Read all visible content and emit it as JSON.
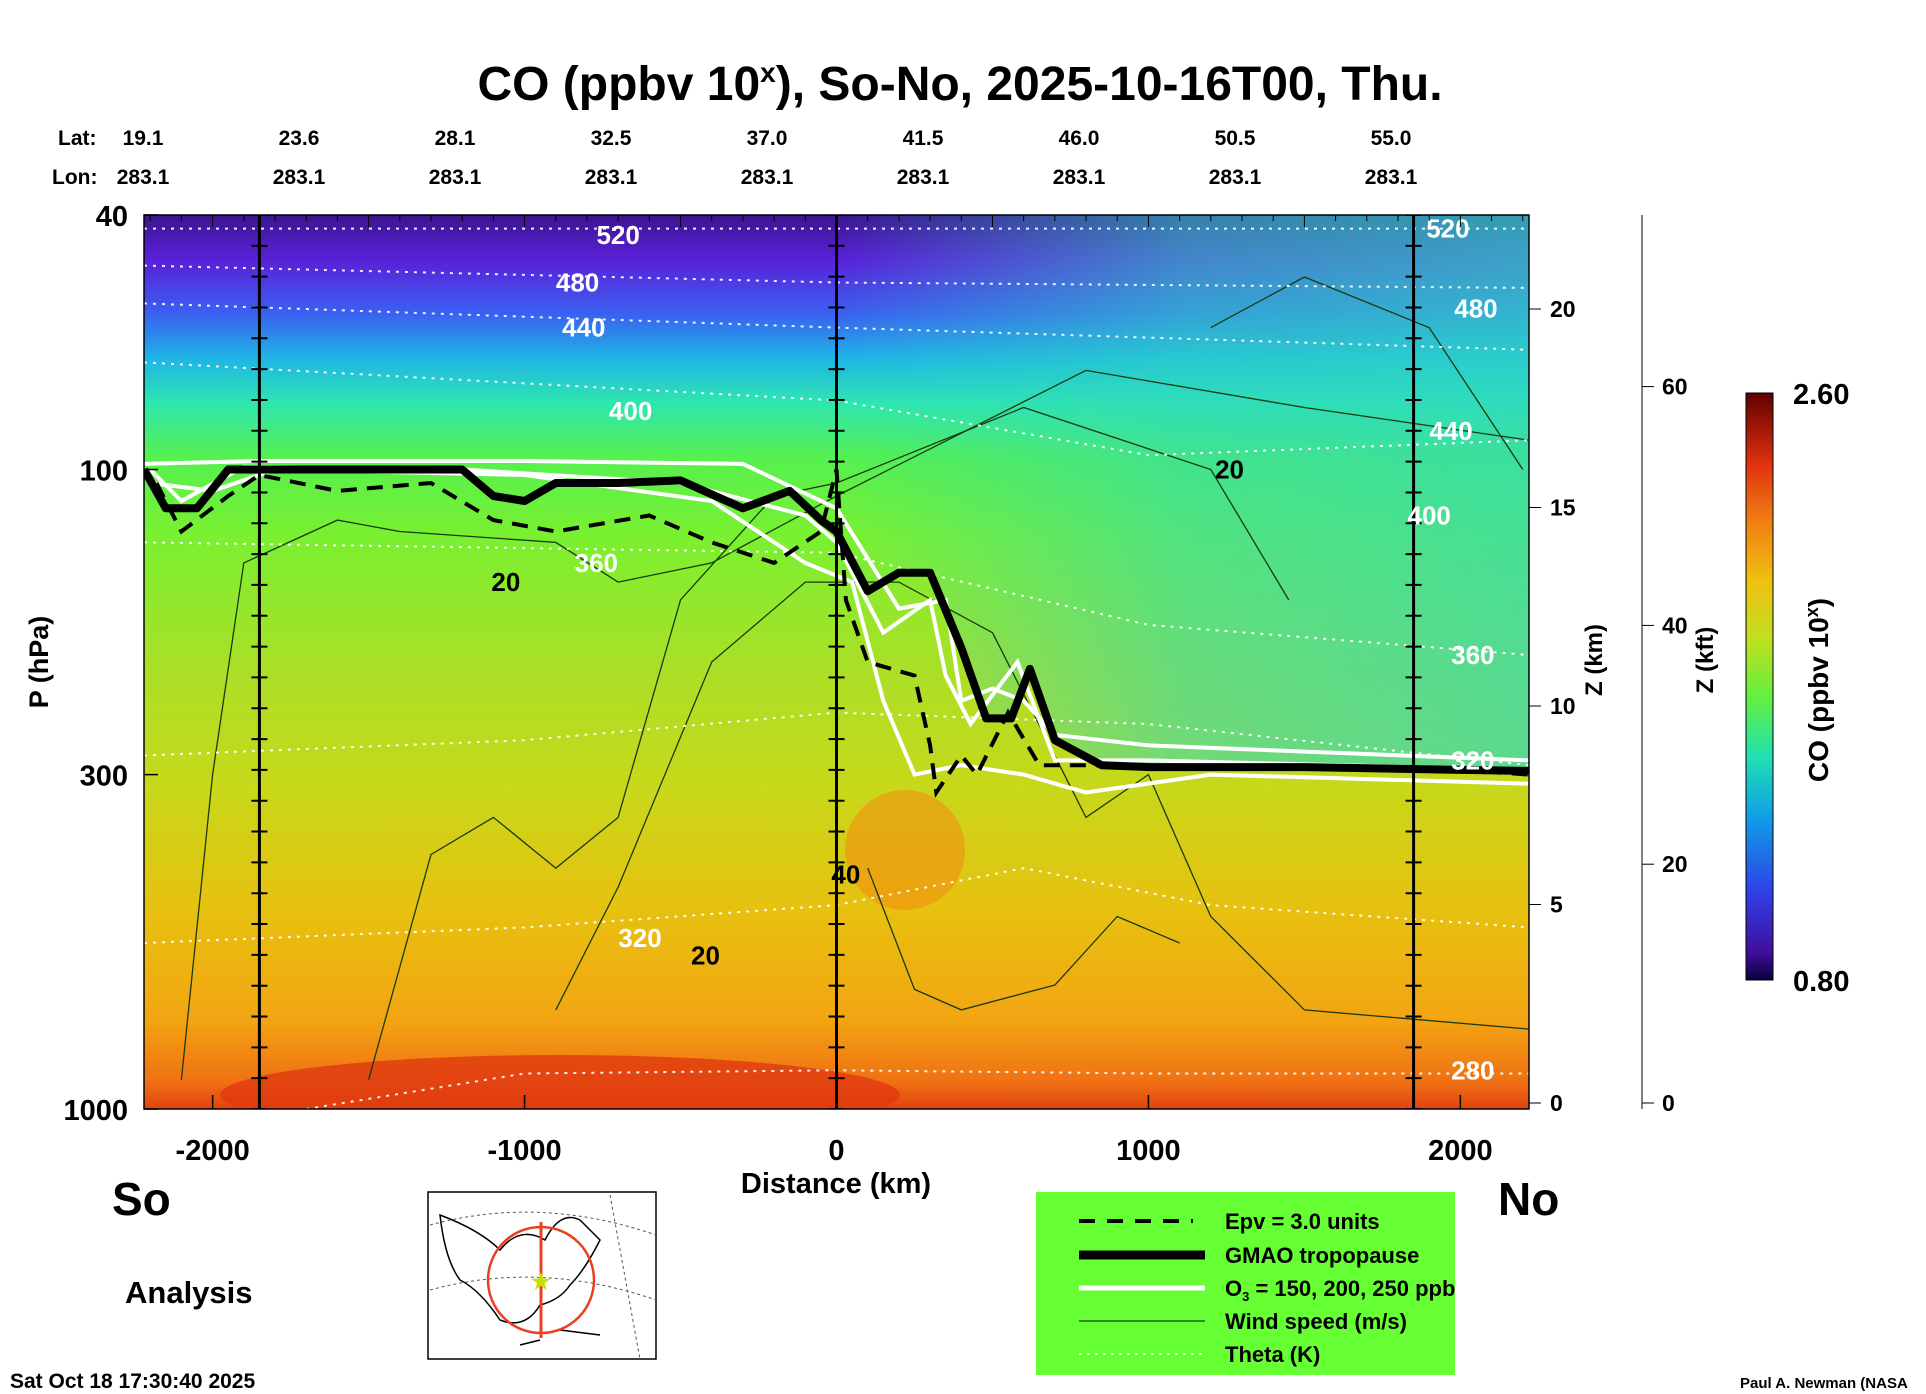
{
  "chart_data": {
    "type": "heatmap",
    "title": "CO (ppbv 10",
    "title_sup": "x",
    "title_rest": "), So-No, 2025-10-16T00, Thu.",
    "xlabel": "Distance (km)",
    "ylabel": "P (hPa)",
    "y2label": "Z (km)",
    "y3label": "Z (kft)",
    "xlim": [
      -2220,
      2220
    ],
    "ylim": [
      1000,
      40
    ],
    "yscale": "log",
    "x_ticks": [
      "-2000",
      "-1000",
      "0",
      "1000",
      "2000"
    ],
    "x_tick_values": [
      -2000,
      -1000,
      0,
      1000,
      2000
    ],
    "y_ticks": [
      "40",
      "100",
      "300",
      "1000"
    ],
    "y_tick_values": [
      40,
      100,
      300,
      1000
    ],
    "zkm_ticks": [
      "0",
      "5",
      "10",
      "15",
      "20"
    ],
    "zkm_values": [
      0,
      5,
      10,
      15,
      20
    ],
    "zkft_ticks": [
      "0",
      "20",
      "40",
      "60"
    ],
    "zkft_values": [
      0,
      20,
      40,
      60
    ],
    "lat_label": "Lat:",
    "lon_label": "Lon:",
    "lats": [
      "19.1",
      "23.6",
      "28.1",
      "32.5",
      "37.0",
      "41.5",
      "46.0",
      "50.5",
      "55.0"
    ],
    "lons": [
      "283.1",
      "283.1",
      "283.1",
      "283.1",
      "283.1",
      "283.1",
      "283.1",
      "283.1",
      "283.1"
    ],
    "vertical_lines_km": [
      -1850,
      0,
      1850
    ],
    "colorbar": {
      "label": "CO (ppbv 10",
      "label_sup": "x",
      "label_end": ")",
      "min": "0.80",
      "max": "2.60"
    },
    "tropopause": [
      [
        -2220,
        100
      ],
      [
        -2150,
        115
      ],
      [
        -2050,
        115
      ],
      [
        -1950,
        100
      ],
      [
        -1850,
        100
      ],
      [
        -1200,
        100
      ],
      [
        -1100,
        110
      ],
      [
        -1000,
        112
      ],
      [
        -900,
        105
      ],
      [
        -700,
        105
      ],
      [
        -500,
        104
      ],
      [
        -300,
        115
      ],
      [
        -150,
        108
      ],
      [
        -50,
        120
      ],
      [
        0,
        125
      ],
      [
        100,
        155
      ],
      [
        200,
        145
      ],
      [
        300,
        145
      ],
      [
        400,
        190
      ],
      [
        480,
        245
      ],
      [
        560,
        245
      ],
      [
        620,
        205
      ],
      [
        700,
        265
      ],
      [
        850,
        290
      ],
      [
        1000,
        292
      ],
      [
        1500,
        292
      ],
      [
        2000,
        295
      ],
      [
        2220,
        296
      ]
    ],
    "epv": [
      [
        -2180,
        105
      ],
      [
        -2100,
        125
      ],
      [
        -1950,
        110
      ],
      [
        -1850,
        102
      ],
      [
        -1600,
        108
      ],
      [
        -1300,
        105
      ],
      [
        -1100,
        120
      ],
      [
        -900,
        125
      ],
      [
        -600,
        118
      ],
      [
        -400,
        130
      ],
      [
        -200,
        140
      ],
      [
        -50,
        125
      ],
      [
        0,
        100
      ],
      [
        30,
        160
      ],
      [
        100,
        200
      ],
      [
        250,
        210
      ],
      [
        300,
        270
      ],
      [
        320,
        320
      ],
      [
        400,
        280
      ],
      [
        450,
        300
      ],
      [
        550,
        240
      ],
      [
        650,
        290
      ],
      [
        850,
        290
      ],
      [
        1000,
        292
      ],
      [
        2000,
        295
      ],
      [
        2220,
        300
      ]
    ],
    "ozone": [
      [
        [
          -2220,
          98
        ],
        [
          -1850,
          97
        ],
        [
          -1000,
          97
        ],
        [
          -300,
          98
        ],
        [
          0,
          115
        ],
        [
          200,
          165
        ],
        [
          350,
          160
        ],
        [
          400,
          230
        ],
        [
          500,
          220
        ],
        [
          600,
          230
        ],
        [
          700,
          260
        ],
        [
          1000,
          270
        ],
        [
          2220,
          285
        ]
      ],
      [
        [
          -2200,
          100
        ],
        [
          -2100,
          112
        ],
        [
          -1900,
          99
        ],
        [
          -1200,
          100
        ],
        [
          -500,
          105
        ],
        [
          -100,
          118
        ],
        [
          0,
          130
        ],
        [
          150,
          180
        ],
        [
          300,
          160
        ],
        [
          350,
          210
        ],
        [
          430,
          250
        ],
        [
          580,
          200
        ],
        [
          700,
          285
        ],
        [
          1000,
          285
        ],
        [
          2220,
          295
        ]
      ],
      [
        [
          -2200,
          105
        ],
        [
          -2000,
          108
        ],
        [
          -1800,
          100
        ],
        [
          -1000,
          102
        ],
        [
          -400,
          112
        ],
        [
          -100,
          140
        ],
        [
          50,
          150
        ],
        [
          150,
          230
        ],
        [
          250,
          300
        ],
        [
          400,
          290
        ],
        [
          600,
          300
        ],
        [
          800,
          320
        ],
        [
          1200,
          300
        ],
        [
          2220,
          310
        ]
      ]
    ],
    "theta": [
      {
        "label": "520",
        "points": [
          [
            -2220,
            42
          ],
          [
            0,
            42
          ],
          [
            2220,
            42
          ]
        ]
      },
      {
        "label": "480",
        "points": [
          [
            -2220,
            48
          ],
          [
            0,
            51
          ],
          [
            2220,
            52
          ]
        ]
      },
      {
        "label": "440",
        "points": [
          [
            -2220,
            55
          ],
          [
            0,
            60
          ],
          [
            2220,
            65
          ]
        ]
      },
      {
        "label": "400",
        "points": [
          [
            -2220,
            68
          ],
          [
            0,
            78
          ],
          [
            1000,
            95
          ],
          [
            2220,
            90
          ]
        ]
      },
      {
        "label": "360",
        "points": [
          [
            -2220,
            130
          ],
          [
            0,
            135
          ],
          [
            1000,
            175
          ],
          [
            2220,
            195
          ]
        ]
      },
      {
        "label": "320",
        "points": [
          [
            -2220,
            280
          ],
          [
            -1000,
            265
          ],
          [
            0,
            240
          ],
          [
            1000,
            250
          ],
          [
            2220,
            290
          ]
        ]
      },
      {
        "label": "",
        "points": [
          [
            -2220,
            550
          ],
          [
            -1000,
            520
          ],
          [
            0,
            480
          ],
          [
            600,
            420
          ],
          [
            1200,
            480
          ],
          [
            2220,
            520
          ]
        ]
      },
      {
        "label": "280",
        "points": [
          [
            -1700,
            1000
          ],
          [
            -1000,
            880
          ],
          [
            0,
            870
          ],
          [
            1000,
            880
          ],
          [
            2220,
            880
          ]
        ]
      }
    ],
    "theta_labels": [
      {
        "text": "520",
        "at": [
          -700,
          43
        ]
      },
      {
        "text": "480",
        "at": [
          -830,
          51
        ]
      },
      {
        "text": "440",
        "at": [
          -810,
          60
        ]
      },
      {
        "text": "400",
        "at": [
          -660,
          81
        ]
      },
      {
        "text": "360",
        "at": [
          -770,
          140
        ]
      },
      {
        "text": "320",
        "at": [
          -630,
          540
        ]
      },
      {
        "text": "520",
        "at": [
          1960,
          42
        ]
      },
      {
        "text": "480",
        "at": [
          2050,
          56
        ]
      },
      {
        "text": "440",
        "at": [
          1970,
          87
        ]
      },
      {
        "text": "400",
        "at": [
          1900,
          118
        ]
      },
      {
        "text": "360",
        "at": [
          2040,
          195
        ]
      },
      {
        "text": "320",
        "at": [
          2040,
          285
        ]
      },
      {
        "text": "280",
        "at": [
          2040,
          870
        ]
      }
    ],
    "wind": [
      [
        [
          -2100,
          900
        ],
        [
          -2000,
          300
        ],
        [
          -1900,
          140
        ],
        [
          -1600,
          120
        ],
        [
          -1400,
          125
        ],
        [
          -900,
          130
        ],
        [
          -700,
          150
        ],
        [
          -400,
          140
        ],
        [
          0,
          110
        ],
        [
          800,
          70
        ],
        [
          1500,
          80
        ],
        [
          2220,
          90
        ]
      ],
      [
        [
          -1500,
          900
        ],
        [
          -1300,
          400
        ],
        [
          -1100,
          350
        ],
        [
          -900,
          420
        ],
        [
          -700,
          350
        ],
        [
          -500,
          160
        ],
        [
          -200,
          110
        ],
        [
          0,
          105
        ],
        [
          600,
          80
        ],
        [
          1200,
          100
        ],
        [
          1450,
          160
        ]
      ],
      [
        [
          -900,
          700
        ],
        [
          -700,
          450
        ],
        [
          -400,
          200
        ],
        [
          -100,
          150
        ],
        [
          200,
          150
        ],
        [
          500,
          180
        ],
        [
          800,
          350
        ],
        [
          1000,
          300
        ],
        [
          1200,
          500
        ],
        [
          1500,
          700
        ],
        [
          2220,
          750
        ]
      ],
      [
        [
          100,
          420
        ],
        [
          250,
          650
        ],
        [
          400,
          700
        ],
        [
          700,
          640
        ],
        [
          900,
          500
        ],
        [
          1100,
          550
        ]
      ],
      [
        [
          1200,
          60
        ],
        [
          1500,
          50
        ],
        [
          1900,
          60
        ],
        [
          2200,
          100
        ]
      ]
    ],
    "wind_labels": [
      {
        "text": "20",
        "at": [
          -1060,
          150
        ]
      },
      {
        "text": "20",
        "at": [
          1260,
          100
        ]
      },
      {
        "text": "20",
        "at": [
          -420,
          575
        ]
      },
      {
        "text": "40",
        "at": [
          30,
          430
        ]
      }
    ],
    "legend": {
      "epv": "Epv = 3.0 units",
      "tropopause": "GMAO tropopause",
      "ozone_pre": "O",
      "ozone_sub": "3",
      "ozone_post": " = 150, 200, 250 ppb",
      "wind": "Wind speed (m/s)",
      "theta": "Theta (K)"
    }
  },
  "labels": {
    "south": "So",
    "north": "No",
    "analysis": "Analysis",
    "timestamp": "Sat Oct 18 17:30:40 2025",
    "credit": "Paul A. Newman (NASA"
  },
  "colors": {
    "legend_bg": "#66ff33",
    "tropopause": "#000000",
    "ozone": "#ffffff"
  }
}
